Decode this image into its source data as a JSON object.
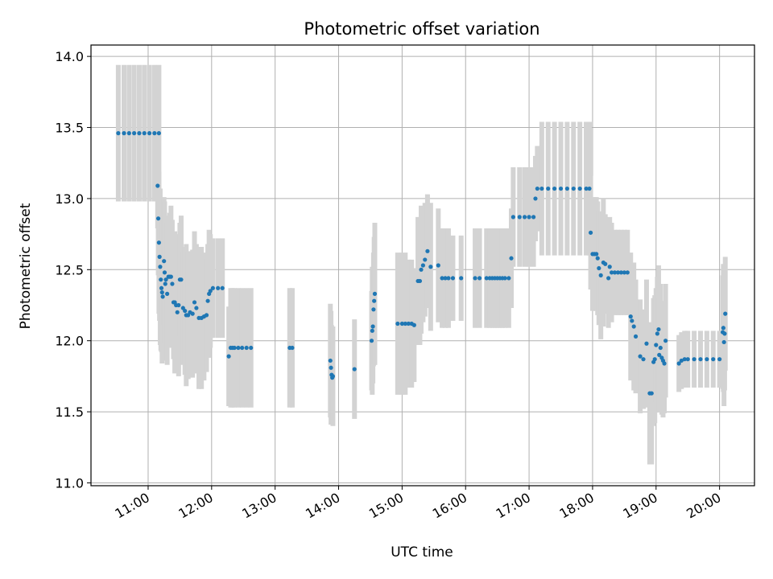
{
  "chart_data": {
    "type": "scatter",
    "title": "Photometric offset variation",
    "xlabel": "UTC time",
    "ylabel": "Photometric offset",
    "x_unit": "hours UTC",
    "xlim": [
      10.1,
      20.55
    ],
    "ylim": [
      10.98,
      14.08
    ],
    "xticks": [
      11,
      12,
      13,
      14,
      15,
      16,
      17,
      18,
      19,
      20
    ],
    "xtick_labels": [
      "11:00",
      "12:00",
      "13:00",
      "14:00",
      "15:00",
      "16:00",
      "17:00",
      "18:00",
      "19:00",
      "20:00"
    ],
    "yticks": [
      11.0,
      11.5,
      12.0,
      12.5,
      13.0,
      13.5,
      14.0
    ],
    "ytick_labels": [
      "11.0",
      "11.5",
      "12.0",
      "12.5",
      "13.0",
      "13.5",
      "14.0"
    ],
    "grid": true,
    "colors": {
      "points": "#1f77b4",
      "errorbars": "#d3d3d3",
      "grid": "#b0b0b0"
    },
    "series": [
      {
        "points": [
          [
            10.53,
            13.46,
            0.48
          ],
          [
            10.62,
            13.46,
            0.48
          ],
          [
            10.7,
            13.46,
            0.48
          ],
          [
            10.78,
            13.46,
            0.48
          ],
          [
            10.86,
            13.46,
            0.48
          ],
          [
            10.94,
            13.46,
            0.48
          ],
          [
            11.02,
            13.46,
            0.48
          ],
          [
            11.1,
            13.46,
            0.48
          ],
          [
            11.17,
            13.46,
            0.48
          ],
          [
            11.15,
            13.09,
            0.3
          ],
          [
            11.16,
            12.86,
            0.4
          ],
          [
            11.17,
            12.69,
            0.5
          ],
          [
            11.18,
            12.59,
            0.45
          ],
          [
            11.19,
            12.52,
            0.55
          ],
          [
            11.2,
            12.43,
            0.5
          ],
          [
            11.21,
            12.37,
            0.45
          ],
          [
            11.22,
            12.34,
            0.5
          ],
          [
            11.23,
            12.31,
            0.45
          ],
          [
            11.25,
            12.56,
            0.45
          ],
          [
            11.26,
            12.48,
            0.5
          ],
          [
            11.27,
            12.4,
            0.4
          ],
          [
            11.28,
            12.43,
            0.45
          ],
          [
            11.3,
            12.33,
            0.5
          ],
          [
            11.32,
            12.45,
            0.4
          ],
          [
            11.34,
            12.45,
            0.45
          ],
          [
            11.36,
            12.45,
            0.5
          ],
          [
            11.38,
            12.4,
            0.45
          ],
          [
            11.4,
            12.27,
            0.4
          ],
          [
            11.42,
            12.27,
            0.5
          ],
          [
            11.44,
            12.25,
            0.45
          ],
          [
            11.46,
            12.2,
            0.35
          ],
          [
            11.48,
            12.25,
            0.5
          ],
          [
            11.5,
            12.43,
            0.4
          ],
          [
            11.52,
            12.43,
            0.45
          ],
          [
            11.55,
            12.23,
            0.4
          ],
          [
            11.58,
            12.21,
            0.45
          ],
          [
            11.6,
            12.18,
            0.5
          ],
          [
            11.63,
            12.18,
            0.45
          ],
          [
            11.66,
            12.2,
            0.4
          ],
          [
            11.7,
            12.19,
            0.45
          ],
          [
            11.73,
            12.27,
            0.5
          ],
          [
            11.76,
            12.23,
            0.45
          ],
          [
            11.8,
            12.16,
            0.5
          ],
          [
            11.84,
            12.16,
            0.5
          ],
          [
            11.88,
            12.17,
            0.45
          ],
          [
            11.92,
            12.18,
            0.4
          ],
          [
            11.94,
            12.28,
            0.4
          ],
          [
            11.96,
            12.33,
            0.45
          ],
          [
            11.98,
            12.35,
            0.4
          ],
          [
            12.02,
            12.37,
            0.35
          ],
          [
            12.1,
            12.37,
            0.35
          ],
          [
            12.17,
            12.37,
            0.35
          ],
          [
            12.27,
            11.89,
            0.35
          ],
          [
            12.3,
            11.95,
            0.42
          ],
          [
            12.33,
            11.95,
            0.42
          ],
          [
            12.36,
            11.95,
            0.42
          ],
          [
            12.42,
            11.95,
            0.42
          ],
          [
            12.48,
            11.95,
            0.42
          ],
          [
            12.55,
            11.95,
            0.42
          ],
          [
            12.62,
            11.95,
            0.42
          ],
          [
            13.23,
            11.95,
            0.42
          ],
          [
            13.27,
            11.95,
            0.42
          ],
          [
            13.87,
            11.86,
            0.4
          ],
          [
            13.88,
            11.81,
            0.4
          ],
          [
            13.89,
            11.76,
            0.35
          ],
          [
            13.9,
            11.74,
            0.33
          ],
          [
            13.91,
            11.75,
            0.35
          ],
          [
            14.25,
            11.8,
            0.35
          ],
          [
            14.52,
            12.0,
            0.35
          ],
          [
            14.53,
            12.07,
            0.45
          ],
          [
            14.54,
            12.1,
            0.4
          ],
          [
            14.55,
            12.22,
            0.4
          ],
          [
            14.56,
            12.28,
            0.45
          ],
          [
            14.57,
            12.33,
            0.5
          ],
          [
            14.93,
            12.12,
            0.5
          ],
          [
            15.0,
            12.12,
            0.5
          ],
          [
            15.05,
            12.12,
            0.5
          ],
          [
            15.1,
            12.12,
            0.45
          ],
          [
            15.15,
            12.12,
            0.45
          ],
          [
            15.19,
            12.11,
            0.4
          ],
          [
            15.25,
            12.42,
            0.45
          ],
          [
            15.28,
            12.42,
            0.45
          ],
          [
            15.3,
            12.5,
            0.45
          ],
          [
            15.33,
            12.53,
            0.4
          ],
          [
            15.36,
            12.57,
            0.4
          ],
          [
            15.4,
            12.63,
            0.4
          ],
          [
            15.45,
            12.52,
            0.45
          ],
          [
            15.57,
            12.53,
            0.4
          ],
          [
            15.63,
            12.44,
            0.35
          ],
          [
            15.68,
            12.44,
            0.35
          ],
          [
            15.73,
            12.44,
            0.35
          ],
          [
            15.8,
            12.44,
            0.3
          ],
          [
            15.93,
            12.44,
            0.3
          ],
          [
            16.15,
            12.44,
            0.35
          ],
          [
            16.22,
            12.44,
            0.35
          ],
          [
            16.33,
            12.44,
            0.35
          ],
          [
            16.38,
            12.44,
            0.35
          ],
          [
            16.42,
            12.44,
            0.35
          ],
          [
            16.46,
            12.44,
            0.35
          ],
          [
            16.5,
            12.44,
            0.35
          ],
          [
            16.54,
            12.44,
            0.35
          ],
          [
            16.58,
            12.44,
            0.35
          ],
          [
            16.62,
            12.44,
            0.35
          ],
          [
            16.68,
            12.44,
            0.35
          ],
          [
            16.72,
            12.58,
            0.35
          ],
          [
            16.75,
            12.87,
            0.35
          ],
          [
            16.85,
            12.87,
            0.35
          ],
          [
            16.93,
            12.87,
            0.35
          ],
          [
            17.0,
            12.87,
            0.35
          ],
          [
            17.07,
            12.87,
            0.35
          ],
          [
            17.1,
            13.0,
            0.3
          ],
          [
            17.13,
            13.07,
            0.3
          ],
          [
            17.2,
            13.07,
            0.47
          ],
          [
            17.3,
            13.07,
            0.47
          ],
          [
            17.4,
            13.07,
            0.47
          ],
          [
            17.5,
            13.07,
            0.47
          ],
          [
            17.6,
            13.07,
            0.47
          ],
          [
            17.7,
            13.07,
            0.47
          ],
          [
            17.8,
            13.07,
            0.47
          ],
          [
            17.9,
            13.07,
            0.47
          ],
          [
            17.95,
            13.07,
            0.47
          ],
          [
            17.97,
            12.76,
            0.4
          ],
          [
            18.0,
            12.61,
            0.4
          ],
          [
            18.03,
            12.61,
            0.4
          ],
          [
            18.06,
            12.61,
            0.4
          ],
          [
            18.08,
            12.58,
            0.4
          ],
          [
            18.1,
            12.51,
            0.4
          ],
          [
            18.13,
            12.46,
            0.45
          ],
          [
            18.17,
            12.55,
            0.45
          ],
          [
            18.2,
            12.54,
            0.35
          ],
          [
            18.25,
            12.44,
            0.35
          ],
          [
            18.27,
            12.52,
            0.35
          ],
          [
            18.3,
            12.48,
            0.35
          ],
          [
            18.35,
            12.48,
            0.3
          ],
          [
            18.4,
            12.48,
            0.3
          ],
          [
            18.45,
            12.48,
            0.3
          ],
          [
            18.5,
            12.48,
            0.3
          ],
          [
            18.55,
            12.48,
            0.3
          ],
          [
            18.6,
            12.17,
            0.45
          ],
          [
            18.62,
            12.14,
            0.4
          ],
          [
            18.65,
            12.1,
            0.45
          ],
          [
            18.68,
            12.03,
            0.4
          ],
          [
            18.75,
            11.89,
            0.4
          ],
          [
            18.8,
            11.87,
            0.35
          ],
          [
            18.85,
            11.98,
            0.45
          ],
          [
            18.9,
            11.63,
            0.5
          ],
          [
            18.93,
            11.63,
            0.5
          ],
          [
            18.96,
            11.85,
            0.45
          ],
          [
            18.98,
            11.87,
            0.45
          ],
          [
            19.0,
            11.97,
            0.4
          ],
          [
            19.02,
            12.05,
            0.4
          ],
          [
            19.04,
            12.08,
            0.45
          ],
          [
            19.05,
            11.9,
            0.4
          ],
          [
            19.07,
            11.95,
            0.45
          ],
          [
            19.09,
            11.88,
            0.4
          ],
          [
            19.11,
            11.86,
            0.4
          ],
          [
            19.13,
            11.84,
            0.35
          ],
          [
            19.15,
            12.0,
            0.4
          ],
          [
            19.36,
            11.84,
            0.2
          ],
          [
            19.4,
            11.86,
            0.2
          ],
          [
            19.45,
            11.87,
            0.2
          ],
          [
            19.5,
            11.87,
            0.2
          ],
          [
            19.6,
            11.87,
            0.2
          ],
          [
            19.7,
            11.87,
            0.2
          ],
          [
            19.8,
            11.87,
            0.2
          ],
          [
            19.9,
            11.87,
            0.2
          ],
          [
            20.0,
            11.87,
            0.2
          ],
          [
            20.05,
            12.06,
            0.4
          ],
          [
            20.06,
            12.09,
            0.45
          ],
          [
            20.07,
            11.99,
            0.45
          ],
          [
            20.08,
            12.05,
            0.4
          ],
          [
            20.09,
            12.19,
            0.4
          ]
        ]
      }
    ]
  }
}
